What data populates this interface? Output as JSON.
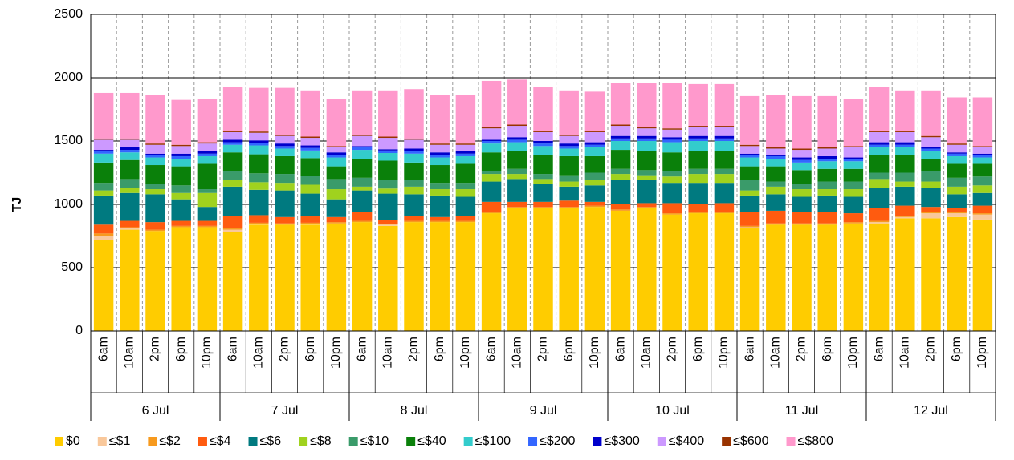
{
  "chart_data": {
    "type": "stacked_bar",
    "ylabel": "TJ",
    "ylim": [
      0,
      2500
    ],
    "yticks": [
      0,
      500,
      1000,
      1500,
      2000,
      2500
    ],
    "grid": true,
    "legend": "bottom",
    "categories": [
      "6am",
      "10am",
      "2pm",
      "6pm",
      "10pm",
      "6am",
      "10am",
      "2pm",
      "6pm",
      "10pm",
      "6am",
      "10am",
      "2pm",
      "6pm",
      "10pm",
      "6am",
      "10am",
      "2pm",
      "6pm",
      "10pm",
      "6am",
      "10am",
      "2pm",
      "6pm",
      "10pm",
      "6am",
      "10am",
      "2pm",
      "6pm",
      "10pm",
      "6am",
      "10am",
      "2pm",
      "6pm",
      "10pm"
    ],
    "groups": [
      "6 Jul",
      "7 Jul",
      "8 Jul",
      "9 Jul",
      "10 Jul",
      "11 Jul",
      "12 Jul"
    ],
    "series": [
      {
        "name": "$0",
        "color": "#ffcc00",
        "values": [
          720,
          800,
          790,
          820,
          820,
          780,
          840,
          840,
          840,
          850,
          860,
          830,
          860,
          860,
          860,
          930,
          970,
          970,
          970,
          980,
          950,
          970,
          920,
          930,
          930,
          810,
          840,
          840,
          840,
          850,
          850,
          890,
          890,
          900,
          880
        ]
      },
      {
        "name": "≤$1",
        "color": "#f9c89b",
        "values": [
          30,
          10,
          0,
          0,
          0,
          20,
          5,
          0,
          5,
          0,
          0,
          10,
          0,
          0,
          0,
          0,
          0,
          0,
          0,
          0,
          0,
          0,
          0,
          0,
          0,
          10,
          0,
          0,
          0,
          0,
          10,
          10,
          40,
          30,
          40
        ]
      },
      {
        "name": "≤$2",
        "color": "#f79a1e",
        "values": [
          20,
          10,
          10,
          10,
          10,
          10,
          10,
          10,
          10,
          10,
          10,
          5,
          10,
          10,
          10,
          10,
          10,
          10,
          10,
          10,
          10,
          10,
          10,
          10,
          10,
          10,
          10,
          10,
          10,
          10,
          10,
          10,
          10,
          10,
          10
        ]
      },
      {
        "name": "≤$4",
        "color": "#ff5b0f",
        "values": [
          70,
          50,
          60,
          40,
          40,
          100,
          60,
          50,
          50,
          40,
          70,
          30,
          40,
          30,
          40,
          80,
          40,
          40,
          50,
          30,
          40,
          30,
          80,
          60,
          70,
          110,
          100,
          90,
          90,
          70,
          100,
          80,
          40,
          30,
          60
        ]
      },
      {
        "name": "≤$6",
        "color": "#007a80",
        "values": [
          230,
          220,
          220,
          170,
          110,
          230,
          200,
          210,
          180,
          140,
          170,
          210,
          170,
          170,
          150,
          160,
          180,
          140,
          110,
          130,
          190,
          180,
          160,
          170,
          160,
          130,
          130,
          120,
          130,
          130,
          160,
          150,
          150,
          110,
          100
        ]
      },
      {
        "name": "≤$8",
        "color": "#a0d21e",
        "values": [
          40,
          40,
          40,
          50,
          110,
          50,
          60,
          60,
          70,
          80,
          30,
          40,
          60,
          50,
          60,
          60,
          40,
          40,
          40,
          40,
          50,
          40,
          50,
          70,
          70,
          40,
          60,
          60,
          50,
          60,
          70,
          40,
          50,
          60,
          60
        ]
      },
      {
        "name": "≤$10",
        "color": "#3a9b6a",
        "values": [
          60,
          70,
          40,
          60,
          30,
          70,
          70,
          70,
          70,
          80,
          70,
          70,
          50,
          50,
          50,
          20,
          40,
          40,
          50,
          60,
          40,
          40,
          40,
          40,
          40,
          80,
          40,
          40,
          60,
          60,
          50,
          70,
          80,
          70,
          70
        ]
      },
      {
        "name": "≤$40",
        "color": "#0a800a",
        "values": [
          160,
          150,
          150,
          150,
          200,
          150,
          150,
          140,
          140,
          100,
          150,
          150,
          140,
          140,
          150,
          150,
          140,
          150,
          150,
          130,
          150,
          150,
          150,
          140,
          140,
          110,
          120,
          110,
          100,
          100,
          140,
          140,
          100,
          110,
          100
        ]
      },
      {
        "name": "≤$100",
        "color": "#33cccc",
        "values": [
          70,
          60,
          60,
          60,
          60,
          60,
          70,
          60,
          60,
          70,
          70,
          60,
          70,
          60,
          60,
          70,
          70,
          70,
          60,
          70,
          70,
          80,
          80,
          80,
          80,
          70,
          60,
          60,
          60,
          60,
          60,
          60,
          60,
          60,
          50
        ]
      },
      {
        "name": "≤$200",
        "color": "#3366ff",
        "values": [
          20,
          20,
          20,
          20,
          20,
          20,
          20,
          20,
          20,
          20,
          20,
          20,
          20,
          20,
          20,
          20,
          20,
          20,
          20,
          20,
          20,
          20,
          20,
          20,
          20,
          20,
          20,
          20,
          20,
          20,
          20,
          20,
          20,
          20,
          20
        ]
      },
      {
        "name": "≤$300",
        "color": "#0000cc",
        "values": [
          10,
          20,
          10,
          20,
          20,
          20,
          20,
          20,
          20,
          20,
          10,
          10,
          20,
          20,
          20,
          10,
          20,
          20,
          20,
          20,
          20,
          20,
          20,
          20,
          20,
          10,
          10,
          20,
          20,
          10,
          20,
          20,
          10,
          10,
          10
        ]
      },
      {
        "name": "≤$400",
        "color": "#cc99ff",
        "values": [
          80,
          60,
          70,
          60,
          60,
          60,
          60,
          60,
          60,
          40,
          80,
          90,
          70,
          60,
          50,
          90,
          90,
          70,
          60,
          80,
          80,
          60,
          60,
          70,
          70,
          60,
          50,
          60,
          60,
          80,
          80,
          80,
          80,
          60,
          50
        ]
      },
      {
        "name": "≤$600",
        "color": "#993300",
        "values": [
          10,
          10,
          10,
          10,
          10,
          10,
          10,
          10,
          10,
          10,
          10,
          10,
          10,
          10,
          10,
          10,
          10,
          10,
          10,
          10,
          10,
          10,
          10,
          10,
          10,
          10,
          10,
          10,
          10,
          10,
          10,
          10,
          10,
          10,
          10
        ]
      },
      {
        "name": "≤$800",
        "color": "#ff99cc",
        "values": [
          360,
          360,
          385,
          355,
          345,
          350,
          345,
          370,
          365,
          375,
          350,
          365,
          390,
          385,
          385,
          365,
          355,
          350,
          350,
          310,
          330,
          350,
          360,
          330,
          330,
          385,
          415,
          415,
          405,
          375,
          350,
          320,
          360,
          365,
          385
        ]
      }
    ]
  }
}
